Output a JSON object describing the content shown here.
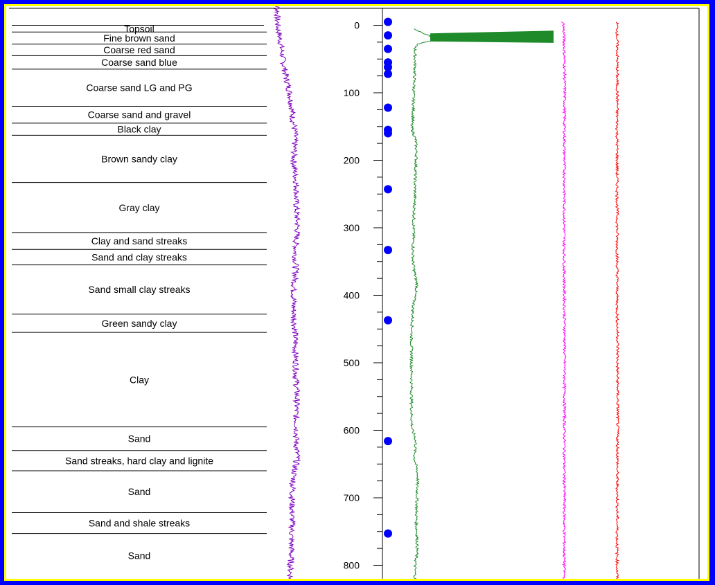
{
  "colors": {
    "background": "#0000ff",
    "frame_border": "#ffff00",
    "log1": "#7f00bf",
    "log2": "#1e8a2a",
    "log3": "#ff00ff",
    "log4": "#ff0000",
    "markers": "#0000ff"
  },
  "chart_data": {
    "type": "line",
    "title": "",
    "orientation": "vertical-depth",
    "depth_axis": {
      "ticks": [
        "0",
        "100",
        "200",
        "300",
        "400",
        "500",
        "600",
        "700",
        "800"
      ],
      "range": [
        0,
        830
      ],
      "minor_tick_step": 25
    },
    "lithology": [
      {
        "name": "Topsoil",
        "top": 0,
        "bottom": 10
      },
      {
        "name": "Fine brown sand",
        "top": 10,
        "bottom": 28
      },
      {
        "name": "Coarse red sand",
        "top": 28,
        "bottom": 45
      },
      {
        "name": "Coarse sand blue",
        "top": 45,
        "bottom": 65
      },
      {
        "name": "Coarse sand LG and PG",
        "top": 65,
        "bottom": 120
      },
      {
        "name": "Coarse sand and gravel",
        "top": 120,
        "bottom": 145
      },
      {
        "name": "Black clay",
        "top": 145,
        "bottom": 163
      },
      {
        "name": "Brown sandy clay",
        "top": 163,
        "bottom": 233
      },
      {
        "name": "Gray clay",
        "top": 233,
        "bottom": 307
      },
      {
        "name": "Clay and sand streaks",
        "top": 307,
        "bottom": 332
      },
      {
        "name": "Sand and clay streaks",
        "top": 332,
        "bottom": 355
      },
      {
        "name": "Sand small clay streaks",
        "top": 355,
        "bottom": 428
      },
      {
        "name": "Green sandy clay",
        "top": 428,
        "bottom": 455
      },
      {
        "name": "Clay",
        "top": 455,
        "bottom": 595
      },
      {
        "name": "Sand",
        "top": 595,
        "bottom": 630
      },
      {
        "name": "Sand streaks, hard clay and lignite",
        "top": 630,
        "bottom": 660
      },
      {
        "name": "Sand",
        "top": 660,
        "bottom": 722
      },
      {
        "name": "Sand and shale streaks",
        "top": 722,
        "bottom": 753
      },
      {
        "name": "Sand",
        "top": 753,
        "bottom": 830
      }
    ],
    "sample_points_depth": [
      -5,
      15,
      35,
      55,
      62,
      72,
      122,
      155,
      160,
      243,
      333,
      437,
      616,
      753
    ],
    "series": [
      {
        "key": "log1",
        "color": "#7f00bf",
        "points": [
          [
            -40,
            38
          ],
          [
            -5,
            38
          ],
          [
            5,
            40
          ],
          [
            20,
            45
          ],
          [
            40,
            50
          ],
          [
            60,
            55
          ],
          [
            80,
            62
          ],
          [
            100,
            70
          ],
          [
            120,
            75
          ],
          [
            140,
            78
          ],
          [
            150,
            82
          ],
          [
            160,
            84
          ],
          [
            180,
            82
          ],
          [
            200,
            80
          ],
          [
            220,
            84
          ],
          [
            240,
            88
          ],
          [
            260,
            86
          ],
          [
            280,
            88
          ],
          [
            300,
            90
          ],
          [
            320,
            86
          ],
          [
            340,
            84
          ],
          [
            360,
            86
          ],
          [
            380,
            82
          ],
          [
            400,
            80
          ],
          [
            420,
            80
          ],
          [
            440,
            82
          ],
          [
            460,
            84
          ],
          [
            480,
            84
          ],
          [
            500,
            86
          ],
          [
            520,
            86
          ],
          [
            540,
            88
          ],
          [
            560,
            88
          ],
          [
            580,
            86
          ],
          [
            600,
            88
          ],
          [
            620,
            86
          ],
          [
            640,
            90
          ],
          [
            660,
            82
          ],
          [
            680,
            78
          ],
          [
            700,
            76
          ],
          [
            720,
            76
          ],
          [
            740,
            76
          ],
          [
            760,
            74
          ],
          [
            780,
            74
          ],
          [
            800,
            72
          ],
          [
            820,
            72
          ],
          [
            830,
            72
          ]
        ]
      },
      {
        "key": "log2",
        "color": "#1e8a2a",
        "points": [
          [
            5,
            40
          ],
          [
            10,
            55
          ],
          [
            15,
            80
          ],
          [
            22,
            95
          ],
          [
            28,
            45
          ],
          [
            35,
            40
          ],
          [
            60,
            40
          ],
          [
            80,
            38
          ],
          [
            100,
            36
          ],
          [
            120,
            35
          ],
          [
            140,
            34
          ],
          [
            148,
            30
          ],
          [
            155,
            32
          ],
          [
            170,
            42
          ],
          [
            190,
            44
          ],
          [
            210,
            42
          ],
          [
            230,
            40
          ],
          [
            250,
            40
          ],
          [
            270,
            38
          ],
          [
            290,
            36
          ],
          [
            310,
            36
          ],
          [
            330,
            34
          ],
          [
            350,
            34
          ],
          [
            370,
            40
          ],
          [
            385,
            46
          ],
          [
            400,
            40
          ],
          [
            420,
            34
          ],
          [
            440,
            32
          ],
          [
            460,
            30
          ],
          [
            480,
            30
          ],
          [
            500,
            30
          ],
          [
            520,
            30
          ],
          [
            540,
            30
          ],
          [
            560,
            30
          ],
          [
            580,
            30
          ],
          [
            600,
            32
          ],
          [
            610,
            40
          ],
          [
            620,
            42
          ],
          [
            630,
            40
          ],
          [
            640,
            38
          ],
          [
            650,
            42
          ],
          [
            660,
            46
          ],
          [
            670,
            48
          ],
          [
            680,
            46
          ],
          [
            700,
            46
          ],
          [
            720,
            44
          ],
          [
            740,
            44
          ],
          [
            760,
            46
          ],
          [
            780,
            46
          ],
          [
            800,
            40
          ],
          [
            820,
            40
          ],
          [
            830,
            40
          ]
        ]
      },
      {
        "key": "log3",
        "color": "#ff00ff",
        "points": [
          [
            -5,
            20
          ],
          [
            0,
            28
          ],
          [
            20,
            32
          ],
          [
            40,
            34
          ],
          [
            60,
            36
          ],
          [
            80,
            37
          ],
          [
            100,
            38
          ],
          [
            130,
            36
          ],
          [
            160,
            35
          ],
          [
            200,
            35
          ],
          [
            240,
            34
          ],
          [
            280,
            34
          ],
          [
            320,
            33
          ],
          [
            360,
            34
          ],
          [
            400,
            34
          ],
          [
            440,
            36
          ],
          [
            460,
            37
          ],
          [
            480,
            36
          ],
          [
            500,
            37
          ],
          [
            520,
            36
          ],
          [
            540,
            35
          ],
          [
            560,
            36
          ],
          [
            580,
            36
          ],
          [
            600,
            35
          ],
          [
            620,
            35
          ],
          [
            640,
            35
          ],
          [
            660,
            34
          ],
          [
            680,
            34
          ],
          [
            700,
            35
          ],
          [
            720,
            34
          ],
          [
            740,
            34
          ],
          [
            760,
            34
          ],
          [
            780,
            34
          ],
          [
            800,
            34
          ],
          [
            830,
            34
          ]
        ]
      },
      {
        "key": "log4",
        "color": "#ff0000",
        "points": [
          [
            -5,
            12
          ],
          [
            20,
            11
          ],
          [
            40,
            12
          ],
          [
            60,
            12
          ],
          [
            80,
            11
          ],
          [
            100,
            12
          ],
          [
            120,
            13
          ],
          [
            130,
            11
          ],
          [
            160,
            10
          ],
          [
            200,
            11
          ],
          [
            240,
            11
          ],
          [
            280,
            11
          ],
          [
            320,
            11
          ],
          [
            360,
            11
          ],
          [
            400,
            11
          ],
          [
            430,
            11
          ],
          [
            450,
            13
          ],
          [
            460,
            16
          ],
          [
            480,
            15
          ],
          [
            500,
            14
          ],
          [
            520,
            14
          ],
          [
            540,
            16
          ],
          [
            560,
            16
          ],
          [
            580,
            15
          ],
          [
            600,
            16
          ],
          [
            620,
            15
          ],
          [
            640,
            14
          ],
          [
            660,
            12
          ],
          [
            680,
            12
          ],
          [
            700,
            12
          ],
          [
            720,
            12
          ],
          [
            740,
            12
          ],
          [
            760,
            11
          ],
          [
            780,
            11
          ],
          [
            800,
            11
          ],
          [
            830,
            11
          ]
        ]
      }
    ]
  }
}
